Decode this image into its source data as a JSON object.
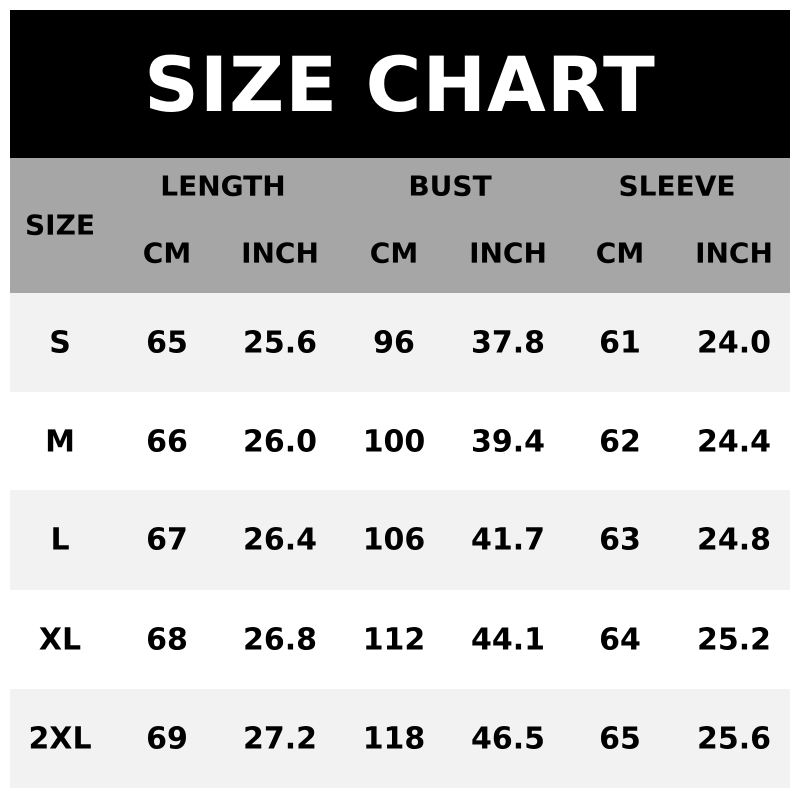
{
  "title": "SIZE CHART",
  "colors": {
    "title_bg": "#000000",
    "header_bg": "#a6a6a6",
    "row_shade": "#f2f2f2"
  },
  "chart_data": {
    "type": "table",
    "title": "SIZE CHART",
    "size_header": "SIZE",
    "groups": [
      "LENGTH",
      "BUST",
      "SLEEVE"
    ],
    "units": [
      "CM",
      "INCH",
      "CM",
      "INCH",
      "CM",
      "INCH"
    ],
    "rows": [
      [
        "S",
        "65",
        "25.6",
        "96",
        "37.8",
        "61",
        "24.0"
      ],
      [
        "M",
        "66",
        "26.0",
        "100",
        "39.4",
        "62",
        "24.4"
      ],
      [
        "L",
        "67",
        "26.4",
        "106",
        "41.7",
        "63",
        "24.8"
      ],
      [
        "XL",
        "68",
        "26.8",
        "112",
        "44.1",
        "64",
        "25.2"
      ],
      [
        "2XL",
        "69",
        "27.2",
        "118",
        "46.5",
        "65",
        "25.6"
      ]
    ]
  }
}
